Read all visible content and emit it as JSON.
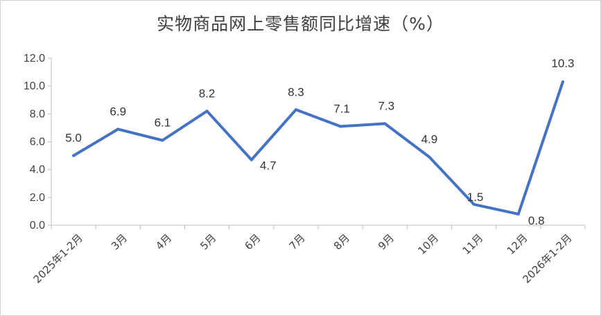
{
  "chart_data": {
    "type": "line",
    "title": "实物商品网上零售额同比增速（%）",
    "categories": [
      "2025年1-2月",
      "3月",
      "4月",
      "5月",
      "6月",
      "7月",
      "8月",
      "9月",
      "10月",
      "11月",
      "12月",
      "2026年1-2月"
    ],
    "series": [
      {
        "values": [
          5.0,
          6.9,
          6.1,
          8.2,
          4.7,
          8.3,
          7.1,
          7.3,
          4.9,
          1.5,
          0.8,
          10.3
        ]
      }
    ],
    "data_labels": [
      "5.0",
      "6.9",
      "6.1",
      "8.2",
      "4.7",
      "8.3",
      "7.1",
      "7.3",
      "4.9",
      "1.5",
      "0.8",
      "10.3"
    ],
    "y_ticks": [
      "0.0",
      "2.0",
      "4.0",
      "6.0",
      "8.0",
      "10.0",
      "12.0"
    ],
    "ylim": [
      0,
      12
    ],
    "grid": false,
    "legend": "none",
    "line_color": "#4472C4"
  }
}
